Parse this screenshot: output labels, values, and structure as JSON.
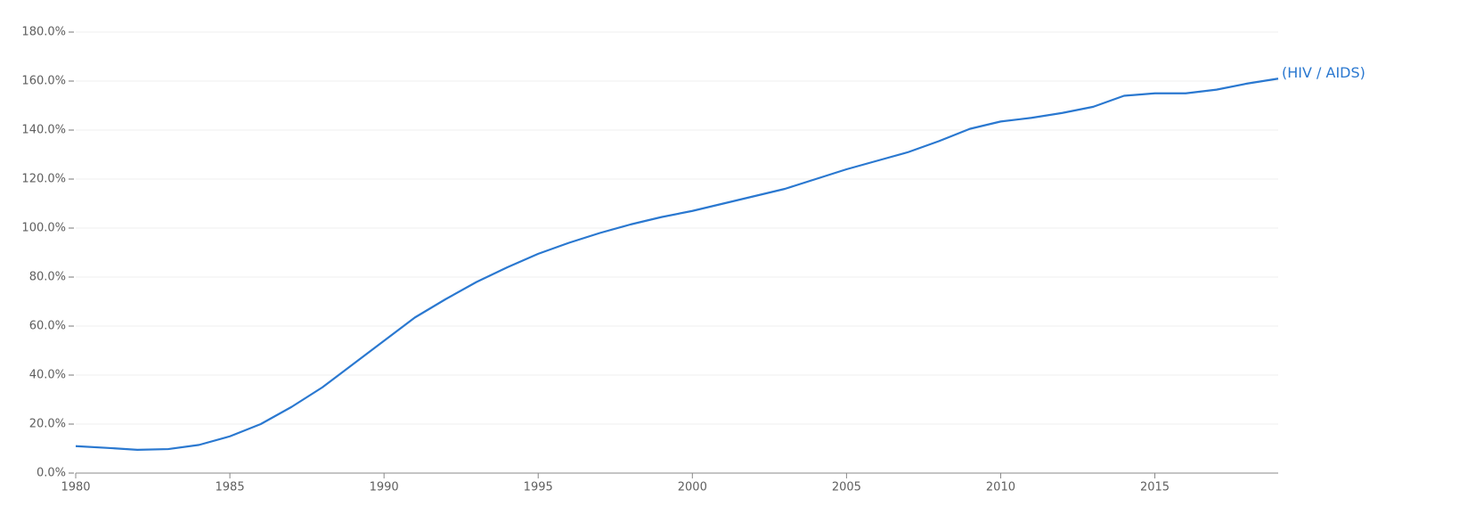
{
  "chart_data": {
    "type": "line",
    "x": [
      1980,
      1981,
      1982,
      1983,
      1984,
      1985,
      1986,
      1987,
      1988,
      1989,
      1990,
      1991,
      1992,
      1993,
      1994,
      1995,
      1996,
      1997,
      1998,
      1999,
      2000,
      2001,
      2002,
      2003,
      2004,
      2005,
      2006,
      2007,
      2008,
      2009,
      2010,
      2011,
      2012,
      2013,
      2014,
      2015,
      2016,
      2017,
      2018,
      2019
    ],
    "series": [
      {
        "name": "(HIV / AIDS)",
        "color": "#2a78d0",
        "values": [
          11,
          10.3,
          9.5,
          9.8,
          11.5,
          15,
          20,
          27,
          35,
          44.5,
          54,
          63.5,
          71,
          78,
          84,
          89.5,
          94,
          98,
          101.5,
          104.5,
          107,
          110,
          113,
          116,
          120,
          124,
          127.5,
          131,
          135.5,
          140.5,
          143.5,
          145,
          147,
          149.5,
          154,
          155,
          155,
          156.5,
          159,
          161
        ]
      }
    ],
    "xlim": [
      1980,
      2019
    ],
    "xticks": [
      1980,
      1985,
      1990,
      1995,
      2000,
      2005,
      2010,
      2015
    ],
    "ylim": [
      0,
      180
    ],
    "yticks": [
      {
        "value": 0,
        "label": "0.0%"
      },
      {
        "value": 20,
        "label": "20.0%"
      },
      {
        "value": 40,
        "label": "40.0%"
      },
      {
        "value": 60,
        "label": "60.0%"
      },
      {
        "value": 80,
        "label": "80.0%"
      },
      {
        "value": 100,
        "label": "100.0%"
      },
      {
        "value": 120,
        "label": "120.0%"
      },
      {
        "value": 140,
        "label": "140.0%"
      },
      {
        "value": 160,
        "label": "160.0%"
      },
      {
        "value": 180,
        "label": "180.0%"
      }
    ],
    "grid": true
  }
}
